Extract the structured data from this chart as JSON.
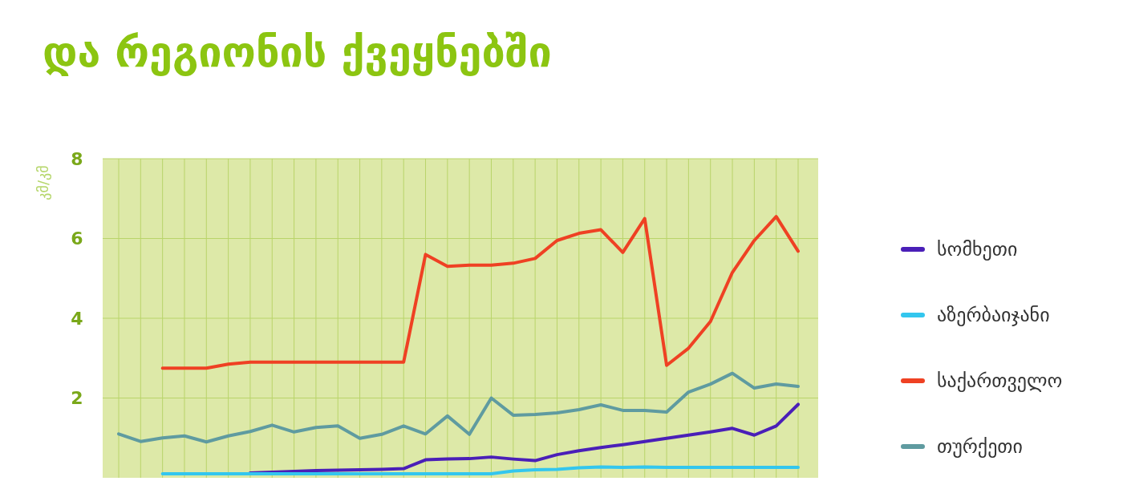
{
  "chart_data": {
    "type": "line",
    "title": "და რეგიონის ქვეყნებში",
    "ylabel": "კმ/კმ",
    "categories": [
      null,
      null,
      null,
      null,
      null,
      null,
      null,
      null,
      null,
      null,
      null,
      null,
      null,
      null,
      null,
      null,
      null,
      null,
      null,
      null,
      null,
      null,
      null,
      null,
      null,
      null,
      null,
      null,
      null,
      null,
      null,
      null
    ],
    "ylim": [
      0,
      8
    ],
    "yticks": [
      2,
      4,
      6,
      8
    ],
    "grid": true,
    "legend": "right",
    "line_style": "solid",
    "marker": "none",
    "series": [
      {
        "name": "სომხეთი",
        "color": "#4a1fb8",
        "values": [
          null,
          null,
          null,
          null,
          null,
          null,
          0.12,
          0.14,
          0.16,
          0.18,
          0.19,
          0.2,
          0.21,
          0.23,
          0.45,
          0.47,
          0.48,
          0.52,
          0.47,
          0.43,
          0.58,
          0.68,
          0.76,
          0.83,
          0.91,
          0.99,
          1.07,
          1.15,
          1.24,
          1.07,
          1.3,
          1.84
        ]
      },
      {
        "name": "აზერბაიჯანი",
        "color": "#33c6ee",
        "values": [
          null,
          null,
          0.1,
          0.1,
          0.1,
          0.1,
          0.1,
          0.1,
          0.1,
          0.1,
          0.1,
          0.1,
          0.1,
          0.1,
          0.1,
          0.1,
          0.1,
          0.1,
          0.17,
          0.2,
          0.21,
          0.25,
          0.27,
          0.26,
          0.27,
          0.26,
          0.26,
          0.26,
          0.26,
          0.26,
          0.26,
          0.26
        ]
      },
      {
        "name": "საქართველო",
        "color": "#ef4123",
        "values": [
          null,
          null,
          2.75,
          2.75,
          2.75,
          2.85,
          2.9,
          2.9,
          2.9,
          2.9,
          2.9,
          2.9,
          2.9,
          2.9,
          5.6,
          5.3,
          5.33,
          5.33,
          5.38,
          5.5,
          5.95,
          6.13,
          6.22,
          5.65,
          6.5,
          2.82,
          3.25,
          3.92,
          5.15,
          5.95,
          6.55,
          5.68
        ]
      },
      {
        "name": "თურქეთი",
        "color": "#5f9ba0",
        "values": [
          1.1,
          0.91,
          1.0,
          1.05,
          0.9,
          1.05,
          1.16,
          1.32,
          1.15,
          1.26,
          1.3,
          0.99,
          1.09,
          1.3,
          1.1,
          1.55,
          1.09,
          2.0,
          1.57,
          1.59,
          1.63,
          1.71,
          1.83,
          1.69,
          1.69,
          1.65,
          2.15,
          2.35,
          2.62,
          2.25,
          2.35,
          2.29
        ]
      }
    ]
  }
}
